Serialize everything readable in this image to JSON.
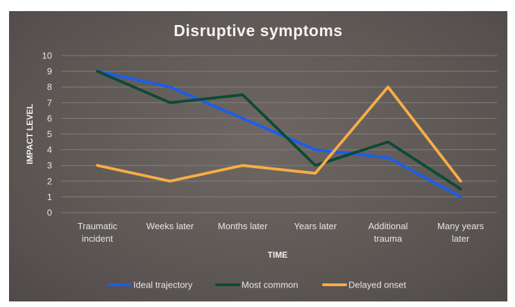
{
  "chart_data": {
    "type": "line",
    "title": "Disruptive symptoms",
    "xlabel": "TIME",
    "ylabel": "IMPACT LEVEL",
    "ylim": [
      0,
      10
    ],
    "yticks": [
      "0",
      "1",
      "2",
      "3",
      "4",
      "5",
      "6",
      "7",
      "8",
      "9",
      "10"
    ],
    "categories": [
      [
        "Traumatic",
        "incident"
      ],
      [
        "Weeks later"
      ],
      [
        "Months later"
      ],
      [
        "Years later"
      ],
      [
        "Additional",
        "trauma"
      ],
      [
        "Many years",
        "later"
      ]
    ],
    "series": [
      {
        "name": "Ideal trajectory",
        "color": "#1a5df0",
        "values": [
          9,
          8,
          6,
          4,
          3.5,
          1
        ]
      },
      {
        "name": "Most common",
        "color": "#0d4a35",
        "values": [
          9,
          7,
          7.5,
          3,
          4.5,
          1.5
        ]
      },
      {
        "name": "Delayed onset",
        "color": "#f7ad45",
        "values": [
          3,
          2,
          3,
          2.5,
          8,
          2
        ]
      }
    ],
    "grid": true,
    "legend_position": "bottom"
  }
}
